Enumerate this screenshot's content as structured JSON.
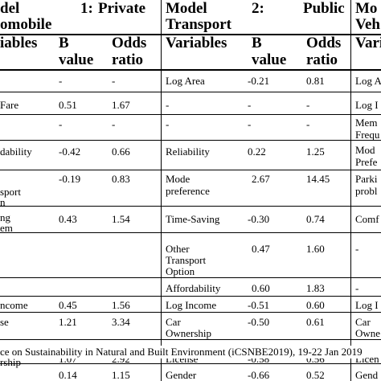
{
  "headers": {
    "m1_l1a": "del",
    "m1_l1b": "1:",
    "m1_l1c": "Private",
    "m1_l2": "omobile",
    "m2_l1a": "Model",
    "m2_l1b": "2:",
    "m2_l1c": "Public",
    "m2_l2": "Transport",
    "m3_l1": "Mo",
    "m3_l2": "Veh"
  },
  "subheaders": {
    "c1": "iables",
    "c2a": "B",
    "c2b": "value",
    "c3a": "Odds",
    "c3b": "ratio",
    "c4": "Variables",
    "c5a": "B",
    "c5b": "value",
    "c6a": "Odds",
    "c6b": "ratio",
    "c7": "Variables"
  },
  "cells": {
    "r1": {
      "b1": "-",
      "o1": "-",
      "v2": "Log Area",
      "b2": "-0.21",
      "o2": "0.81",
      "v3": "Log A"
    },
    "r2": {
      "v1": "Fare",
      "b1": "0.51",
      "o1": "1.67",
      "v2": "-",
      "b2": "-",
      "o2": "-",
      "v3": "Log I"
    },
    "r3": {
      "b1": "-",
      "o1": "-",
      "v2": "-",
      "b2": "-",
      "o2": "-",
      "v3a": "Mem",
      "v3b": "Frequ"
    },
    "r4": {
      "v1": "dability",
      "b1": "-0.42",
      "o1": "0.66",
      "v2": "Reliability",
      "b2": "0.22",
      "o2": "1.25",
      "v3a": "Mod",
      "v3b": "Prefe"
    },
    "r5": {
      "v1a": "sport",
      "v1b": "n",
      "b1": "-0.19",
      "o1": "0.83",
      "v2a": "Mode",
      "v2b": "preference",
      "b2": "2.67",
      "o2": "14.45",
      "v3a": "Parki",
      "v3b": "probl"
    },
    "r6": {
      "v1a": "ng",
      "v1b": "em",
      "b1": "0.43",
      "o1": "1.54",
      "v2": "Time-Saving",
      "b2": "-0.30",
      "o2": "0.74",
      "v3": "Comf"
    },
    "r7": {
      "v2a": "Other",
      "v2b": "Transport",
      "v2c": "Option",
      "b2": "0.47",
      "o2": "1.60",
      "v3": "-"
    },
    "r8": {
      "v2": "Affordability",
      "b2": "0.60",
      "o2": "1.83",
      "v3": "-"
    },
    "r9": {
      "v1": "ncome",
      "b1": "0.45",
      "o1": "1.56",
      "v2": "Log Income",
      "b2": "-0.51",
      "o2": "0.60",
      "v3": "Log I"
    },
    "r10": {
      "v1": "se",
      "b1": "1.21",
      "o1": "3.34",
      "v2a": "Car",
      "v2b": "Ownership",
      "b2": "-0.50",
      "o2": "0.61",
      "v3a": "Car",
      "v3b": "Owne"
    },
    "r11": {
      "v1": "rship",
      "b1": "1.07",
      "o1": "2.92",
      "v2": "License",
      "b2": "-0.58",
      "o2": "0.56",
      "v3": "Licen"
    },
    "r12": {
      "b1": "0.14",
      "o1": "1.15",
      "v2": "Gender",
      "b2": "-0.66",
      "o2": "0.52",
      "v3": "Gend"
    }
  },
  "footer": "ce on Sustainability in Natural and Built Environment (iCSNBE2019), 19-22 Jan 2019"
}
